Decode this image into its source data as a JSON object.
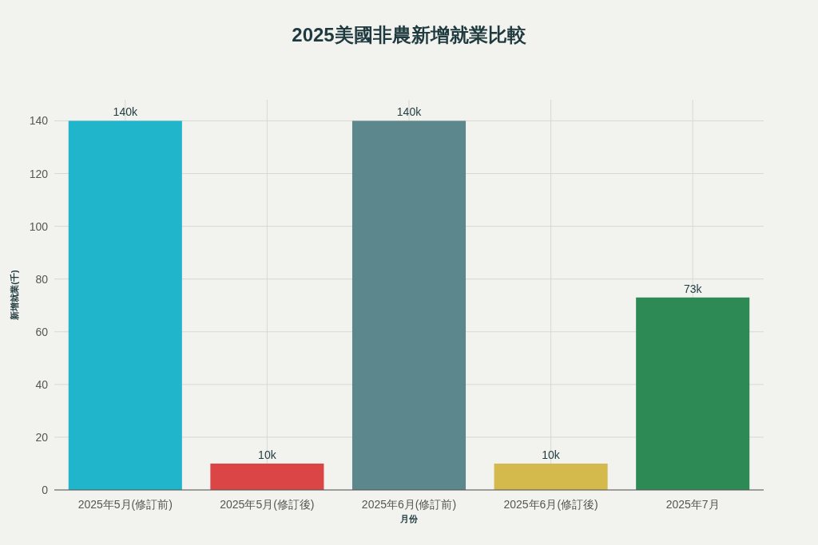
{
  "chart_data": {
    "type": "bar",
    "title": "2025美國非農新增就業比較",
    "xlabel": "月份",
    "ylabel": "新增就業(千)",
    "categories": [
      "2025年5月(修訂前)",
      "2025年5月(修訂後)",
      "2025年6月(修訂前)",
      "2025年6月(修訂後)",
      "2025年7月"
    ],
    "values": [
      140,
      10,
      140,
      10,
      73
    ],
    "colors": [
      "#21b5cc",
      "#dc4545",
      "#5c878c",
      "#d4b94c",
      "#2e8a55"
    ],
    "value_labels": [
      "140k",
      "10k",
      "140k",
      "10k",
      "73k"
    ],
    "ylim": [
      0,
      148
    ],
    "yticks": [
      0,
      20,
      40,
      60,
      80,
      100,
      120,
      140
    ],
    "grid": true
  }
}
